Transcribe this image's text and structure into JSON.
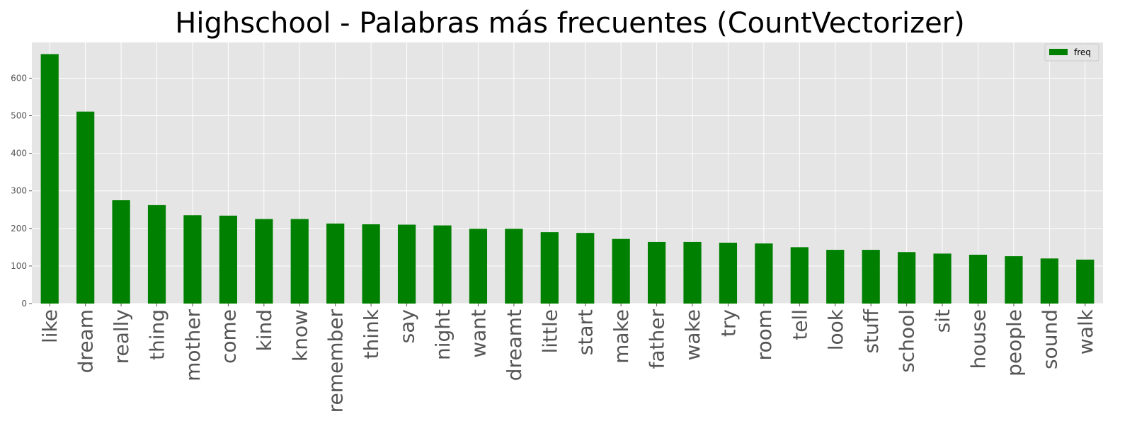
{
  "chart_data": {
    "type": "bar",
    "title": "Highschool - Palabras más frecuentes (CountVectorizer)",
    "xlabel": "",
    "ylabel": "",
    "ylim": [
      0,
      695
    ],
    "yticks": [
      0,
      100,
      200,
      300,
      400,
      500,
      600
    ],
    "grid": true,
    "legend_position": "top-right",
    "bar_color": "#008000",
    "background_color": "#e5e5e5",
    "categories": [
      "like",
      "dream",
      "really",
      "thing",
      "mother",
      "come",
      "kind",
      "know",
      "remember",
      "think",
      "say",
      "night",
      "want",
      "dreamt",
      "little",
      "start",
      "make",
      "father",
      "wake",
      "try",
      "room",
      "tell",
      "look",
      "stuff",
      "school",
      "sit",
      "house",
      "people",
      "sound",
      "walk"
    ],
    "series": [
      {
        "name": "freq",
        "values": [
          664,
          511,
          275,
          262,
          235,
          234,
          225,
          225,
          213,
          211,
          210,
          208,
          199,
          199,
          190,
          188,
          172,
          164,
          164,
          162,
          160,
          150,
          143,
          143,
          137,
          133,
          130,
          126,
          120,
          117
        ]
      }
    ]
  }
}
